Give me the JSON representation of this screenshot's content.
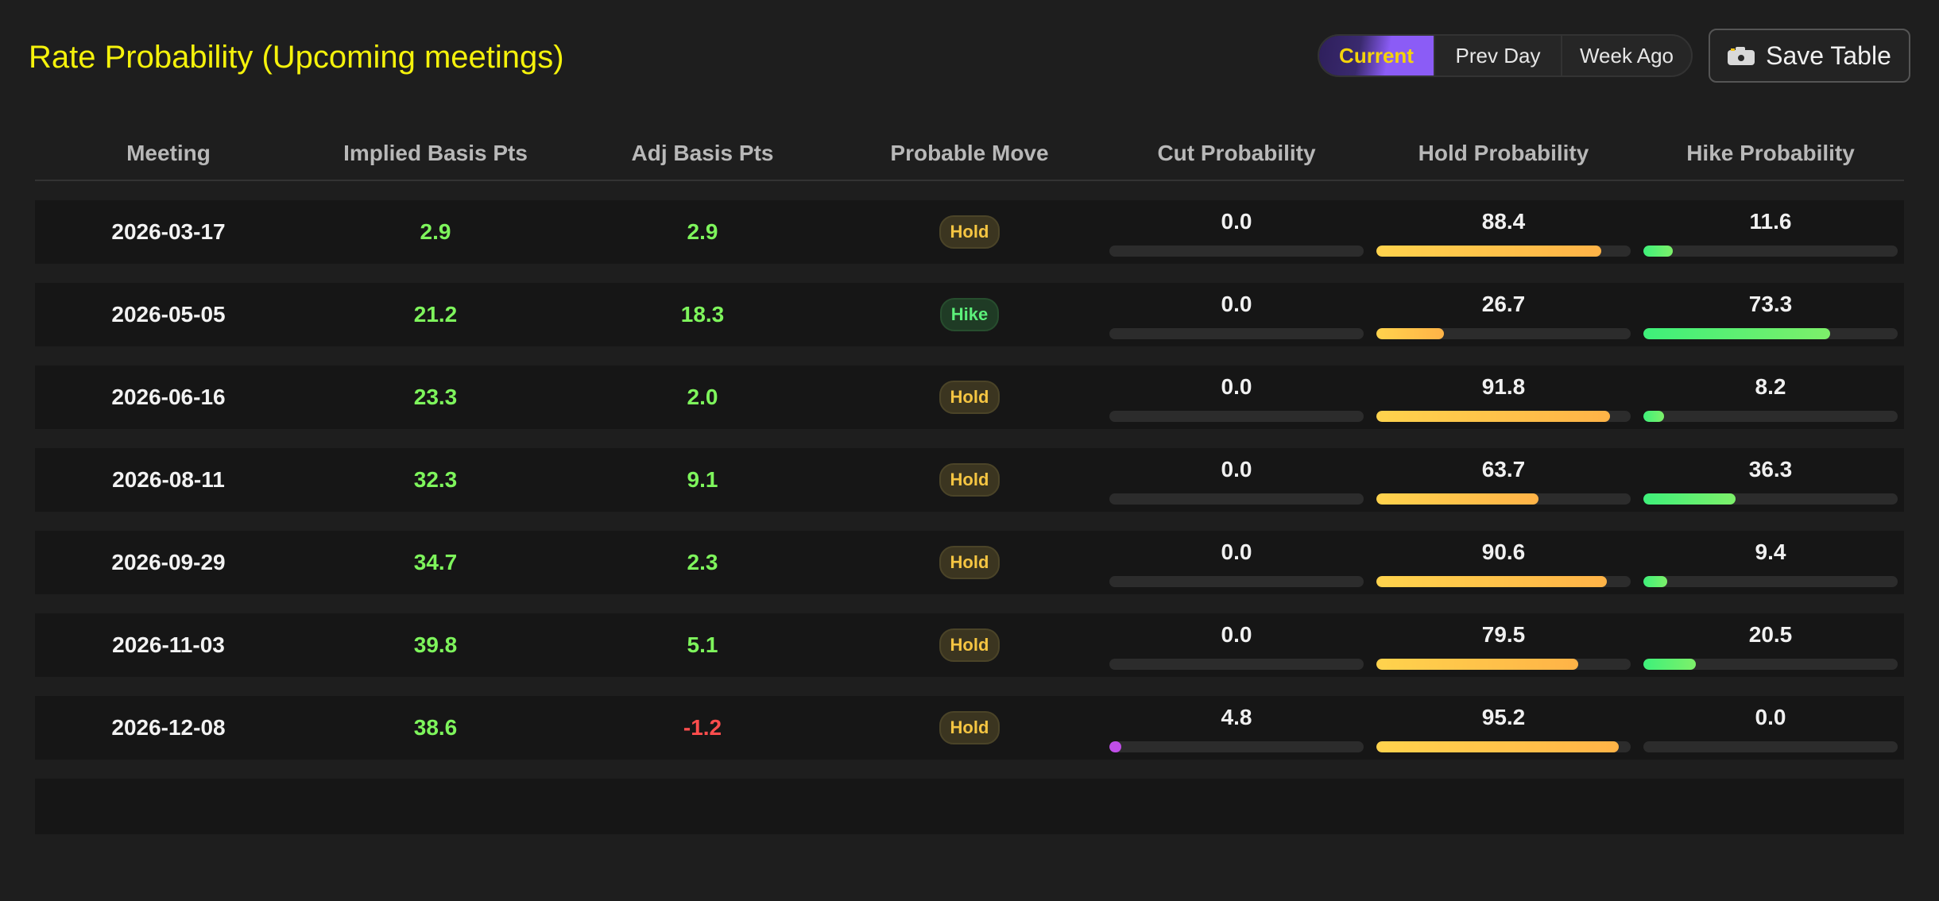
{
  "header": {
    "title": "Rate Probability (Upcoming meetings)"
  },
  "view_toggle": {
    "options": [
      "Current",
      "Prev Day",
      "Week Ago"
    ],
    "selected": "Current"
  },
  "save_button": {
    "label": "Save Table",
    "icon": "camera-icon"
  },
  "table": {
    "columns": [
      "Meeting",
      "Implied Basis Pts",
      "Adj Basis Pts",
      "Probable Move",
      "Cut Probability",
      "Hold Probability",
      "Hike Probability"
    ],
    "rows": [
      {
        "meeting": "2026-03-17",
        "implied": "2.9",
        "adj": "2.9",
        "move": "Hold",
        "cut": "0.0",
        "hold": "88.4",
        "hike": "11.6"
      },
      {
        "meeting": "2026-05-05",
        "implied": "21.2",
        "adj": "18.3",
        "move": "Hike",
        "cut": "0.0",
        "hold": "26.7",
        "hike": "73.3"
      },
      {
        "meeting": "2026-06-16",
        "implied": "23.3",
        "adj": "2.0",
        "move": "Hold",
        "cut": "0.0",
        "hold": "91.8",
        "hike": "8.2"
      },
      {
        "meeting": "2026-08-11",
        "implied": "32.3",
        "adj": "9.1",
        "move": "Hold",
        "cut": "0.0",
        "hold": "63.7",
        "hike": "36.3"
      },
      {
        "meeting": "2026-09-29",
        "implied": "34.7",
        "adj": "2.3",
        "move": "Hold",
        "cut": "0.0",
        "hold": "90.6",
        "hike": "9.4"
      },
      {
        "meeting": "2026-11-03",
        "implied": "39.8",
        "adj": "5.1",
        "move": "Hold",
        "cut": "0.0",
        "hold": "79.5",
        "hike": "20.5"
      },
      {
        "meeting": "2026-12-08",
        "implied": "38.6",
        "adj": "-1.2",
        "move": "Hold",
        "cut": "4.8",
        "hold": "95.2",
        "hike": "0.0"
      }
    ]
  },
  "colors": {
    "title": "#f5f20b",
    "positive": "#7ef55c",
    "negative": "#ff4d4d",
    "hold_badge": "#f5c542",
    "hike_badge": "#5cf07a",
    "cut_bar": "#c04ee8",
    "hold_bar": "#ffc64a",
    "hike_bar": "#4cf07a",
    "toggle_accent": "#8b5cf6"
  }
}
